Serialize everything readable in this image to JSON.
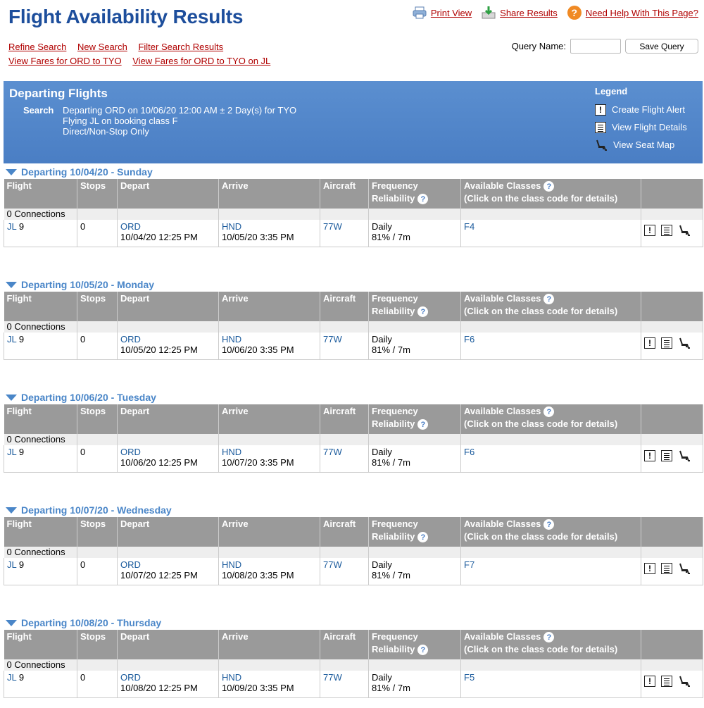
{
  "page": {
    "title": "Flight Availability Results"
  },
  "top_actions": {
    "print_label": "Print View",
    "share_label": "Share Results",
    "help_label": "Need Help With This Page?"
  },
  "nav": {
    "refine": "Refine Search",
    "new_search": "New Search",
    "filter": "Filter Search Results",
    "fares_route": "View Fares for ORD to TYO",
    "fares_route_airline": "View Fares for ORD to TYO on JL"
  },
  "query": {
    "label": "Query Name:",
    "value": "",
    "save_label": "Save Query"
  },
  "banner": {
    "title": "Departing Flights",
    "search_label": "Search",
    "search_line1": "Departing ORD on 10/06/20 12:00 AM ± 2 Day(s) for TYO",
    "search_line2": "Flying JL on booking class F",
    "search_line3": "Direct/Non-Stop Only"
  },
  "legend": {
    "title": "Legend",
    "alert": "Create Flight Alert",
    "details": "View Flight Details",
    "seatmap": "View Seat Map"
  },
  "columns": {
    "flight": "Flight",
    "stops": "Stops",
    "depart": "Depart",
    "arrive": "Arrive",
    "aircraft": "Aircraft",
    "frequency": "Frequency",
    "reliability": "Reliability",
    "classes": "Available Classes",
    "classes_note": "(Click on the class code for details)"
  },
  "days": [
    {
      "header": "Departing 10/04/20 - Sunday",
      "connections": "0 Connections",
      "airline": "JL",
      "flight_no": "9",
      "stops": "0",
      "dep_airport": "ORD",
      "dep_time": "10/04/20 12:25 PM",
      "arr_airport": "HND",
      "arr_time": "10/05/20 3:35 PM",
      "aircraft": "77W",
      "frequency": "Daily",
      "reliability": "81% / 7m",
      "classes": "F4"
    },
    {
      "header": "Departing 10/05/20 - Monday",
      "connections": "0 Connections",
      "airline": "JL",
      "flight_no": "9",
      "stops": "0",
      "dep_airport": "ORD",
      "dep_time": "10/05/20 12:25 PM",
      "arr_airport": "HND",
      "arr_time": "10/06/20 3:35 PM",
      "aircraft": "77W",
      "frequency": "Daily",
      "reliability": "81% / 7m",
      "classes": "F6"
    },
    {
      "header": "Departing 10/06/20 - Tuesday",
      "connections": "0 Connections",
      "airline": "JL",
      "flight_no": "9",
      "stops": "0",
      "dep_airport": "ORD",
      "dep_time": "10/06/20 12:25 PM",
      "arr_airport": "HND",
      "arr_time": "10/07/20 3:35 PM",
      "aircraft": "77W",
      "frequency": "Daily",
      "reliability": "81% / 7m",
      "classes": "F6"
    },
    {
      "header": "Departing 10/07/20 - Wednesday",
      "connections": "0 Connections",
      "airline": "JL",
      "flight_no": "9",
      "stops": "0",
      "dep_airport": "ORD",
      "dep_time": "10/07/20 12:25 PM",
      "arr_airport": "HND",
      "arr_time": "10/08/20 3:35 PM",
      "aircraft": "77W",
      "frequency": "Daily",
      "reliability": "81% / 7m",
      "classes": "F7"
    },
    {
      "header": "Departing 10/08/20 - Thursday",
      "connections": "0 Connections",
      "airline": "JL",
      "flight_no": "9",
      "stops": "0",
      "dep_airport": "ORD",
      "dep_time": "10/08/20 12:25 PM",
      "arr_airport": "HND",
      "arr_time": "10/09/20 3:35 PM",
      "aircraft": "77W",
      "frequency": "Daily",
      "reliability": "81% / 7m",
      "classes": "F5"
    }
  ],
  "colors": {
    "title": "#1d4e9c",
    "link": "#b00000",
    "banner": "#4a7ec4",
    "day_header": "#4a86c8",
    "table_header": "#9a9a9a"
  }
}
